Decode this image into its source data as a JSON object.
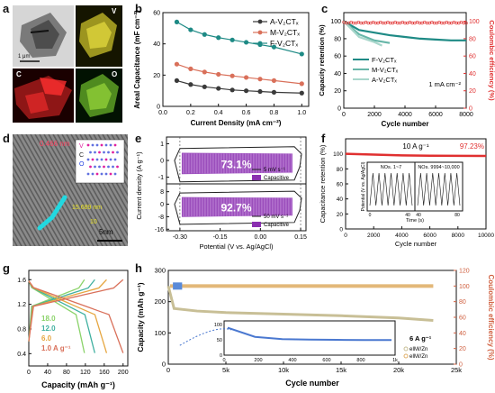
{
  "panel_labels": {
    "a": "a",
    "b": "b",
    "c": "c",
    "d": "d",
    "e": "e",
    "f": "f",
    "g": "g",
    "h": "h"
  },
  "panel_a": {
    "scale": "1 μm",
    "map_labels": [
      "V",
      "C",
      "O"
    ]
  },
  "panel_d": {
    "lattice1": "0.466 nm",
    "lattice2": "15.689 nm",
    "scale": "5nm",
    "tick_label": "10",
    "atoms": [
      "V",
      "C",
      "O"
    ]
  },
  "chart_data": [
    {
      "id": "b",
      "type": "line",
      "ylabel": "Areal Capacitance (mF cm⁻²)",
      "xlabel": "Current Density (mA cm⁻²)",
      "xlim": [
        0,
        1.05
      ],
      "ylim": [
        0,
        60
      ],
      "xticks": [
        "0.0",
        "0.2",
        "0.4",
        "0.6",
        "0.8",
        "1.0"
      ],
      "yticks": [
        "0",
        "20",
        "40",
        "60"
      ],
      "x": [
        0.1,
        0.2,
        0.3,
        0.4,
        0.5,
        0.6,
        0.7,
        0.8,
        1.0
      ],
      "series": [
        {
          "name": "A-V₂CTₓ",
          "color": "#3a3a3a",
          "marker": "circle",
          "values": [
            16.5,
            14,
            12.5,
            11.5,
            10.5,
            10,
            9.5,
            9,
            8.5
          ]
        },
        {
          "name": "M-V₂CTₓ",
          "color": "#d9705a",
          "marker": "circle",
          "values": [
            27,
            24,
            22,
            20.5,
            19.5,
            18.5,
            17.5,
            16.5,
            14.5
          ]
        },
        {
          "name": "F-V₂CTₓ",
          "color": "#1e8a85",
          "marker": "circle",
          "values": [
            54,
            49,
            46,
            44,
            42.5,
            41,
            39.5,
            38,
            33.5
          ]
        }
      ]
    },
    {
      "id": "c",
      "type": "line",
      "ylabel": "Capacity retention (%)",
      "y2label": "Coulombic efficiency (%)",
      "xlabel": "Cycle number",
      "xlim": [
        0,
        8000
      ],
      "ylim": [
        0,
        110
      ],
      "y2lim": [
        0,
        110
      ],
      "xticks": [
        "0",
        "2000",
        "4000",
        "6000",
        "8000"
      ],
      "yticks": [
        "0",
        "20",
        "40",
        "60",
        "80",
        "100"
      ],
      "y2ticks": [
        "0",
        "20",
        "40",
        "60",
        "80",
        "100"
      ],
      "annotation": "1 mA cm⁻²",
      "series": [
        {
          "name": "F-V₂CTₓ",
          "color": "#1e8a85",
          "x": [
            0,
            1000,
            2000,
            3000,
            4000,
            5000,
            6000,
            7000,
            8000
          ],
          "values": [
            100,
            90,
            87,
            84,
            82,
            80,
            79,
            78,
            78
          ]
        },
        {
          "name": "M-V₂CTₓ",
          "color": "#67b6a8",
          "x": [
            0,
            1000,
            2000,
            3000
          ],
          "values": [
            100,
            85,
            78,
            75
          ]
        },
        {
          "name": "A-V₂CTₓ",
          "color": "#a8d6cb",
          "x": [
            0,
            1000,
            2000,
            2500
          ],
          "values": [
            100,
            82,
            76,
            72
          ]
        },
        {
          "name": "CE",
          "color": "#e03030",
          "x": [
            0,
            2000,
            4000,
            6000,
            8000
          ],
          "values": [
            100,
            100,
            100,
            100,
            100
          ]
        }
      ]
    },
    {
      "id": "e",
      "type": "area",
      "ylabel": "Current density (A g⁻¹)",
      "xlabel": "Potential (V vs. Ag/AgCl)",
      "xlim": [
        -0.35,
        0.17
      ],
      "xticks": [
        "-0.30",
        "-0.15",
        "0.00",
        "0.15"
      ],
      "top": {
        "yticks": [
          "-1",
          "0",
          "1"
        ],
        "ylim": [
          -1.4,
          1.4
        ],
        "percent": "73.1%",
        "legend": [
          "5 mV s⁻¹",
          "Capacitive"
        ]
      },
      "bottom": {
        "yticks": [
          "-16",
          "-8",
          "0",
          "8"
        ],
        "ylim": [
          -17,
          13
        ],
        "percent": "92.7%",
        "legend": [
          "50 mV s⁻¹",
          "Capacitive"
        ]
      }
    },
    {
      "id": "f",
      "type": "line",
      "ylabel": "Capacitance retention (%)",
      "xlabel": "Cycle number",
      "xlim": [
        0,
        10000
      ],
      "ylim": [
        0,
        120
      ],
      "xticks": [
        "0",
        "2000",
        "4000",
        "6000",
        "8000",
        "10000"
      ],
      "yticks": [
        "0",
        "20",
        "40",
        "60",
        "80",
        "100"
      ],
      "annotation": "10 A g⁻¹",
      "final_label": "97.23%",
      "x": [
        0,
        2000,
        4000,
        6000,
        8000,
        10000
      ],
      "values": [
        100,
        99,
        98,
        97.5,
        97.3,
        97.23
      ],
      "inset": {
        "ylabel": "Potential (V vs. Ag/AgCl)",
        "xlabel": "Time (s)",
        "left_title": "NOs. 1~7",
        "right_title": "NOs. 9994~10,000",
        "xticks": [
          "0",
          "40",
          "40",
          "80"
        ]
      }
    },
    {
      "id": "g",
      "type": "line",
      "xlabel": "Capacity (mAh g⁻¹)",
      "xlim": [
        0,
        210
      ],
      "ylim": [
        0.2,
        1.75
      ],
      "xticks": [
        "0",
        "40",
        "80",
        "120",
        "160",
        "200"
      ],
      "yticks": [
        "0.4",
        "0.8",
        "1.2",
        "1.6"
      ],
      "series": [
        {
          "name": "18.0",
          "color": "#8bd36a",
          "capacity": 118
        },
        {
          "name": "12.0",
          "color": "#3fb0a0",
          "capacity": 140
        },
        {
          "name": "6.0",
          "color": "#e6a640",
          "capacity": 165
        },
        {
          "name": "1.0 A g⁻¹",
          "color": "#d9705a",
          "capacity": 200
        }
      ]
    },
    {
      "id": "h",
      "type": "scatter",
      "ylabel": "Capacity (mAh g⁻¹)",
      "y2label": "Coulombic efficiency (%)",
      "xlabel": "Cycle number",
      "xlim": [
        0,
        25000
      ],
      "ylim": [
        0,
        300
      ],
      "y2lim": [
        0,
        120
      ],
      "xticks": [
        "0",
        "5k",
        "10k",
        "15k",
        "20k",
        "25k"
      ],
      "yticks": [
        "0",
        "100",
        "200",
        "300"
      ],
      "y2ticks": [
        "0",
        "20",
        "40",
        "60",
        "80",
        "100",
        "120"
      ],
      "annotation": "6 A g⁻¹",
      "legend": [
        "eIM//Zn",
        "eIM//Zn"
      ],
      "series": [
        {
          "name": "eIM//Zn capacity",
          "color": "#c8bf96",
          "x": [
            0,
            500,
            2500,
            5000,
            10000,
            15000,
            20000,
            23000
          ],
          "values": [
            250,
            178,
            170,
            165,
            160,
            155,
            148,
            140
          ]
        },
        {
          "name": "CE",
          "color": "#e0b06a",
          "x": [
            0,
            500,
            5000,
            10000,
            15000,
            20000,
            23000
          ],
          "values": [
            100,
            100,
            100,
            100,
            100,
            100,
            100
          ]
        }
      ],
      "inset": {
        "ylim": [
          0,
          150
        ],
        "yticks": [
          "0",
          "50",
          "100"
        ],
        "xticks": [
          "0",
          "200",
          "400",
          "600",
          "800",
          "1k"
        ],
        "values": [
          120,
          80,
          70,
          68,
          67,
          66,
          66
        ]
      }
    }
  ]
}
